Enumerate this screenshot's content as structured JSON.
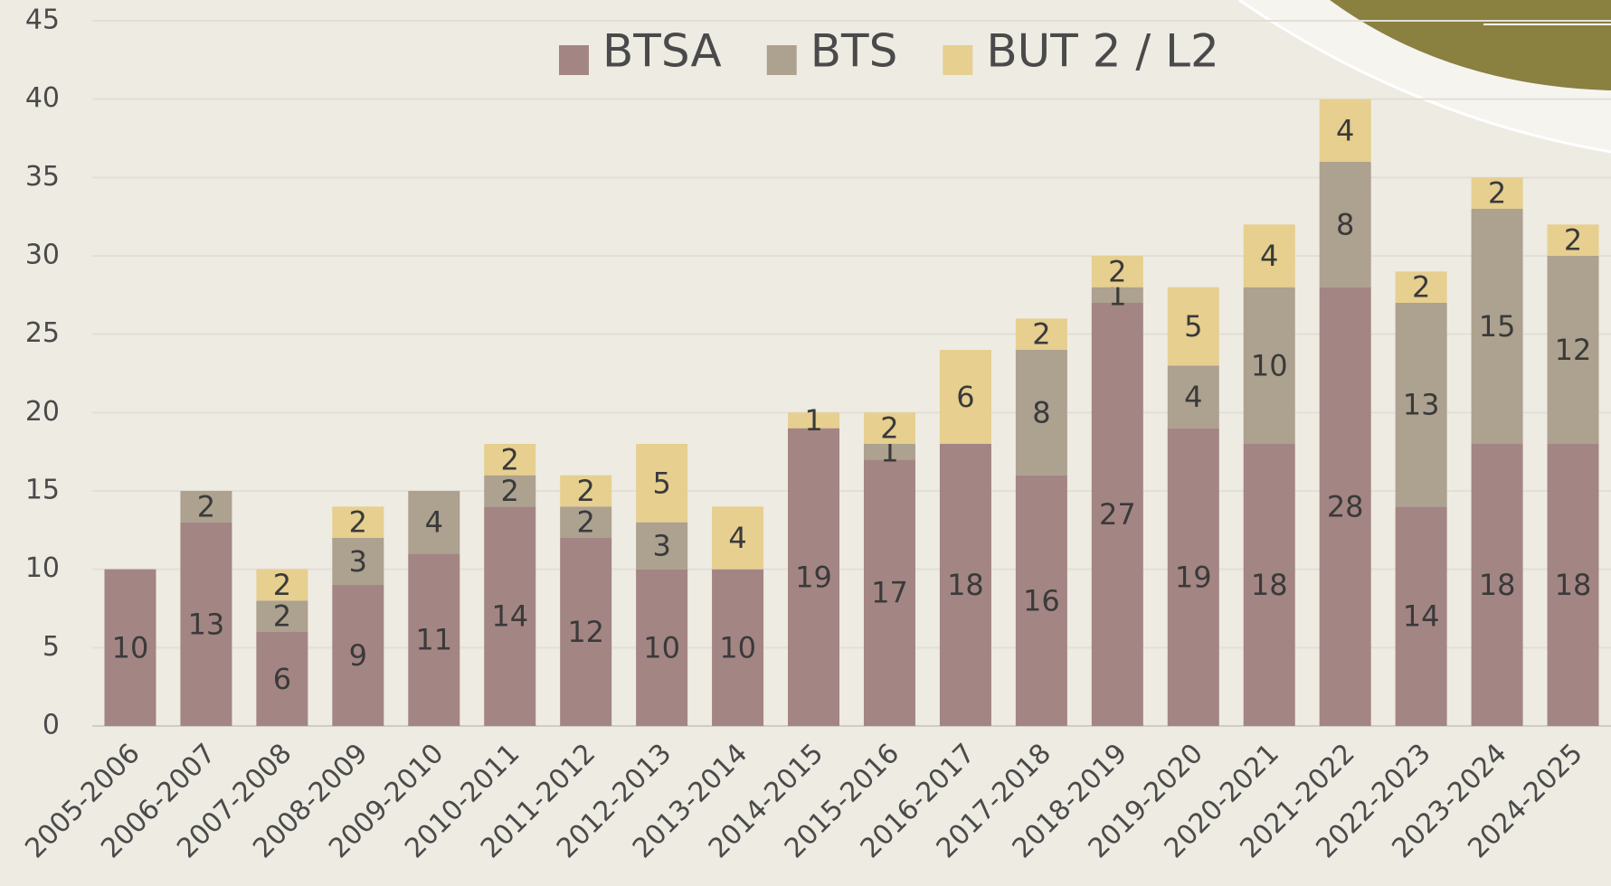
{
  "chart_data": {
    "type": "stacked_bar",
    "categories": [
      "2005-2006",
      "2006-2007",
      "2007-2008",
      "2008-2009",
      "2009-2010",
      "2010-2011",
      "2011-2012",
      "2012-2013",
      "2013-2014",
      "2014-2015",
      "2015-2016",
      "2016-2017",
      "2017-2018",
      "2018-2019",
      "2019-2020",
      "2020-2021",
      "2021-2022",
      "2022-2023",
      "2023-2024",
      "2024-2025"
    ],
    "series": [
      {
        "name": "BTSA",
        "color": "#a38584",
        "values": [
          10,
          13,
          6,
          9,
          11,
          14,
          12,
          10,
          10,
          19,
          17,
          18,
          16,
          27,
          19,
          18,
          28,
          14,
          18,
          18
        ]
      },
      {
        "name": "BTS",
        "color": "#ada18f",
        "values": [
          null,
          2,
          2,
          3,
          4,
          2,
          2,
          3,
          null,
          null,
          1,
          null,
          8,
          1,
          4,
          10,
          8,
          13,
          15,
          12
        ]
      },
      {
        "name": "BUT 2 / L2",
        "color": "#e6cf8f",
        "values": [
          null,
          null,
          2,
          2,
          null,
          2,
          2,
          5,
          4,
          1,
          2,
          6,
          2,
          2,
          5,
          4,
          4,
          2,
          2,
          2
        ]
      }
    ],
    "ylim": [
      0,
      45
    ],
    "yticks": [
      0,
      5,
      10,
      15,
      20,
      25,
      30,
      35,
      40,
      45
    ],
    "grid": true,
    "legend": "top"
  }
}
